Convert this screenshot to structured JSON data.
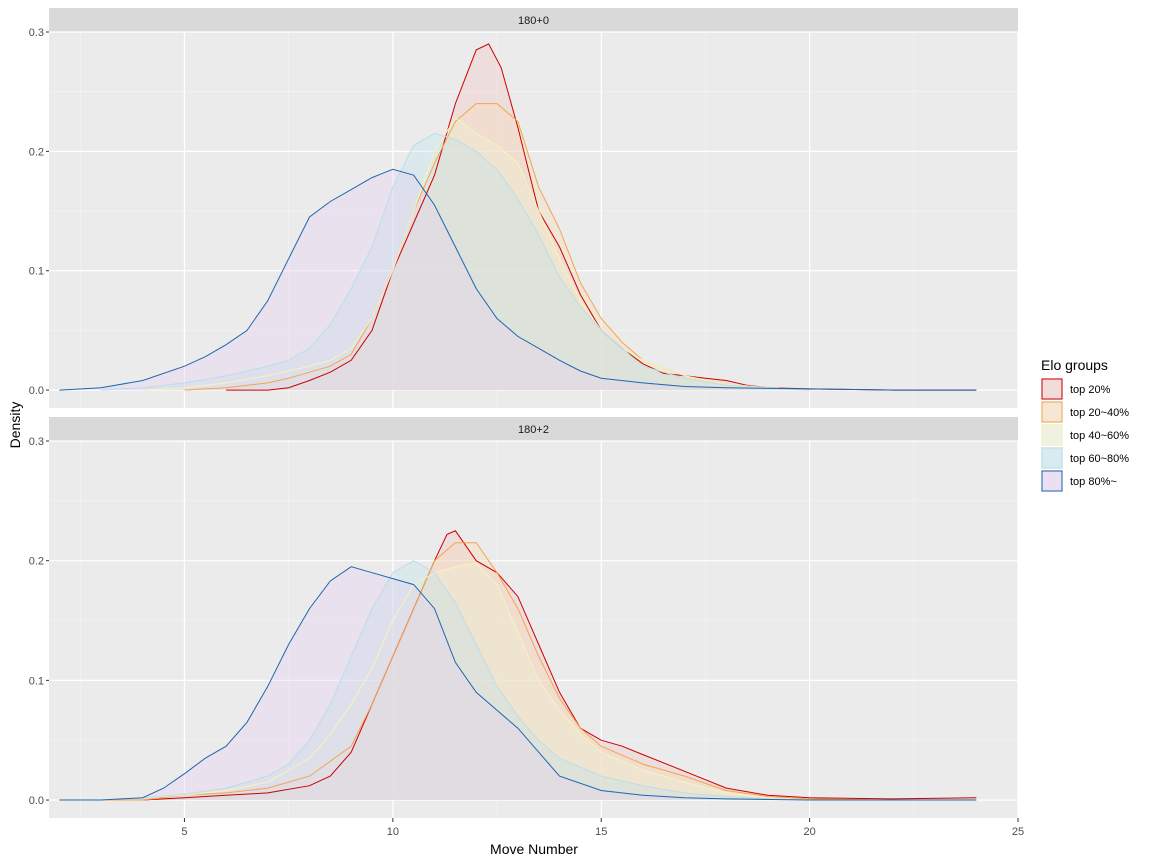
{
  "chart_data": {
    "type": "area",
    "xlabel": "Move Number",
    "ylabel": "Density",
    "xlim": [
      1.75,
      25
    ],
    "ylim": [
      -0.015,
      0.3
    ],
    "x_ticks": [
      5,
      10,
      15,
      20,
      25
    ],
    "y_ticks": [
      0.0,
      0.1,
      0.2,
      0.3
    ],
    "x_tick_labels": [
      "5",
      "10",
      "15",
      "20",
      "25"
    ],
    "y_tick_labels": [
      "0.0",
      "0.1",
      "0.2",
      "0.3"
    ],
    "grid": true,
    "legend": {
      "title": "Elo groups",
      "position": "right"
    },
    "series_styles": [
      {
        "name": "top 20%",
        "line_color": "#cc0000",
        "fill_color": "#f2c4c4",
        "fill_opacity": 0.35
      },
      {
        "name": "top 20~40%",
        "line_color": "#f5a44a",
        "fill_color": "#f7dcb5",
        "fill_opacity": 0.35
      },
      {
        "name": "top 40~60%",
        "line_color": "#f7f2c0",
        "fill_color": "#eef2cf",
        "fill_opacity": 0.35
      },
      {
        "name": "top 60~80%",
        "line_color": "#bcdde8",
        "fill_color": "#bde3ee",
        "fill_opacity": 0.35
      },
      {
        "name": "top 80%~",
        "line_color": "#1f66b0",
        "fill_color": "#e4cdf2",
        "fill_opacity": 0.35
      }
    ],
    "facets": [
      {
        "label": "180+0",
        "series": [
          {
            "name": "top 20%",
            "x": [
              6,
              7,
              7.5,
              8,
              8.5,
              9,
              9.5,
              10,
              10.5,
              11,
              11.5,
              12,
              12.3,
              12.6,
              13,
              13.5,
              14,
              14.5,
              15,
              15.5,
              16,
              16.5,
              17,
              17.5,
              18,
              18.5,
              19,
              20,
              22,
              24
            ],
            "y": [
              0.0,
              0.0,
              0.002,
              0.008,
              0.015,
              0.025,
              0.05,
              0.1,
              0.14,
              0.18,
              0.24,
              0.285,
              0.29,
              0.27,
              0.22,
              0.15,
              0.12,
              0.08,
              0.05,
              0.035,
              0.022,
              0.014,
              0.012,
              0.01,
              0.008,
              0.004,
              0.002,
              0.001,
              0.0,
              0.0
            ]
          },
          {
            "name": "top 20~40%",
            "x": [
              5,
              6,
              7,
              7.5,
              8,
              8.5,
              9,
              9.5,
              10,
              10.5,
              11,
              11.5,
              12,
              12.5,
              13,
              13.5,
              14,
              14.5,
              15,
              15.5,
              16,
              17,
              18,
              19,
              20
            ],
            "y": [
              0.0,
              0.002,
              0.006,
              0.01,
              0.015,
              0.02,
              0.03,
              0.06,
              0.1,
              0.15,
              0.19,
              0.225,
              0.24,
              0.24,
              0.225,
              0.17,
              0.135,
              0.09,
              0.06,
              0.04,
              0.025,
              0.012,
              0.005,
              0.002,
              0.0
            ]
          },
          {
            "name": "top 40~60%",
            "x": [
              4,
              5,
              6,
              7,
              8,
              8.5,
              9,
              9.5,
              10,
              10.5,
              11,
              11.5,
              12,
              12.5,
              13,
              13.5,
              14,
              14.5,
              15,
              15.5,
              16,
              17,
              18,
              19,
              20
            ],
            "y": [
              0.0,
              0.002,
              0.006,
              0.012,
              0.02,
              0.025,
              0.035,
              0.06,
              0.1,
              0.15,
              0.2,
              0.228,
              0.215,
              0.205,
              0.19,
              0.15,
              0.11,
              0.075,
              0.05,
              0.035,
              0.025,
              0.012,
              0.005,
              0.002,
              0.0
            ]
          },
          {
            "name": "top 60~80%",
            "x": [
              3,
              4,
              5,
              6,
              7,
              7.5,
              8,
              8.5,
              9,
              9.5,
              10,
              10.5,
              11,
              11.5,
              12,
              12.5,
              13,
              13.5,
              14,
              14.5,
              15,
              15.5,
              16,
              17,
              18,
              19,
              20
            ],
            "y": [
              0.0,
              0.002,
              0.006,
              0.012,
              0.02,
              0.025,
              0.035,
              0.055,
              0.085,
              0.12,
              0.17,
              0.205,
              0.215,
              0.21,
              0.2,
              0.185,
              0.16,
              0.13,
              0.095,
              0.07,
              0.05,
              0.035,
              0.02,
              0.01,
              0.004,
              0.002,
              0.0
            ]
          },
          {
            "name": "top 80%~",
            "x": [
              2,
              3,
              4,
              5,
              5.5,
              6,
              6.5,
              7,
              7.5,
              8,
              8.5,
              9,
              9.5,
              10,
              10.5,
              11,
              11.5,
              12,
              12.5,
              13,
              13.5,
              14,
              14.5,
              15,
              16,
              17,
              18,
              20,
              22,
              24
            ],
            "y": [
              0.0,
              0.002,
              0.008,
              0.02,
              0.028,
              0.038,
              0.05,
              0.075,
              0.11,
              0.145,
              0.158,
              0.168,
              0.178,
              0.185,
              0.18,
              0.155,
              0.12,
              0.085,
              0.06,
              0.045,
              0.035,
              0.025,
              0.016,
              0.01,
              0.006,
              0.003,
              0.002,
              0.001,
              0.0,
              0.0
            ]
          }
        ]
      },
      {
        "label": "180+2",
        "series": [
          {
            "name": "top 20%",
            "x": [
              4,
              5,
              6,
              7,
              8,
              8.5,
              9,
              9.5,
              10,
              10.5,
              11,
              11.3,
              11.5,
              12,
              12.5,
              13,
              13.5,
              14,
              14.5,
              15,
              15.5,
              16,
              17,
              18,
              19,
              20,
              22,
              24
            ],
            "y": [
              0.0,
              0.002,
              0.004,
              0.006,
              0.012,
              0.02,
              0.04,
              0.08,
              0.12,
              0.16,
              0.2,
              0.222,
              0.225,
              0.2,
              0.19,
              0.17,
              0.13,
              0.09,
              0.06,
              0.05,
              0.045,
              0.038,
              0.024,
              0.01,
              0.004,
              0.002,
              0.001,
              0.002
            ]
          },
          {
            "name": "top 20~40%",
            "x": [
              2,
              3,
              4,
              5,
              6,
              7,
              8,
              9,
              9.5,
              10,
              10.5,
              11,
              11.5,
              12,
              12.5,
              13,
              13.5,
              14,
              14.5,
              15,
              16,
              17,
              18,
              19,
              20,
              22
            ],
            "y": [
              0.0,
              0.0,
              0.0,
              0.004,
              0.006,
              0.01,
              0.02,
              0.045,
              0.08,
              0.12,
              0.16,
              0.2,
              0.215,
              0.215,
              0.19,
              0.16,
              0.12,
              0.085,
              0.06,
              0.045,
              0.03,
              0.02,
              0.008,
              0.003,
              0.001,
              0.0
            ]
          },
          {
            "name": "top 40~60%",
            "x": [
              2,
              3,
              4,
              5,
              6,
              7,
              8,
              8.5,
              9,
              9.5,
              10,
              10.5,
              11,
              11.5,
              12,
              12.5,
              13,
              13.5,
              14,
              14.5,
              15,
              16,
              17,
              18,
              19,
              20
            ],
            "y": [
              0.0,
              0.0,
              0.002,
              0.004,
              0.008,
              0.015,
              0.035,
              0.055,
              0.08,
              0.11,
              0.15,
              0.18,
              0.19,
              0.195,
              0.198,
              0.18,
              0.14,
              0.1,
              0.075,
              0.055,
              0.04,
              0.025,
              0.015,
              0.006,
              0.002,
              0.0
            ]
          },
          {
            "name": "top 60~80%",
            "x": [
              3,
              4,
              5,
              6,
              7,
              7.5,
              8,
              8.5,
              9,
              9.5,
              10,
              10.5,
              11,
              11.5,
              12,
              12.5,
              13,
              13.5,
              14,
              15,
              16,
              17,
              18,
              19,
              20
            ],
            "y": [
              0.0,
              0.002,
              0.005,
              0.01,
              0.02,
              0.03,
              0.05,
              0.08,
              0.12,
              0.16,
              0.19,
              0.2,
              0.19,
              0.165,
              0.13,
              0.095,
              0.07,
              0.05,
              0.035,
              0.02,
              0.012,
              0.006,
              0.003,
              0.001,
              0.0
            ]
          },
          {
            "name": "top 80%~",
            "x": [
              2,
              3,
              4,
              4.5,
              5,
              5.5,
              6,
              6.5,
              7,
              7.5,
              8,
              8.5,
              9,
              9.5,
              10,
              10.5,
              11,
              11.5,
              12,
              12.5,
              13,
              13.5,
              14,
              15,
              16,
              17,
              18,
              20,
              22,
              24
            ],
            "y": [
              0.0,
              0.0,
              0.002,
              0.01,
              0.022,
              0.035,
              0.045,
              0.065,
              0.095,
              0.13,
              0.16,
              0.183,
              0.195,
              0.19,
              0.185,
              0.18,
              0.16,
              0.115,
              0.09,
              0.075,
              0.06,
              0.04,
              0.02,
              0.008,
              0.004,
              0.002,
              0.001,
              0.0,
              0.0,
              0.0
            ]
          }
        ]
      }
    ]
  }
}
